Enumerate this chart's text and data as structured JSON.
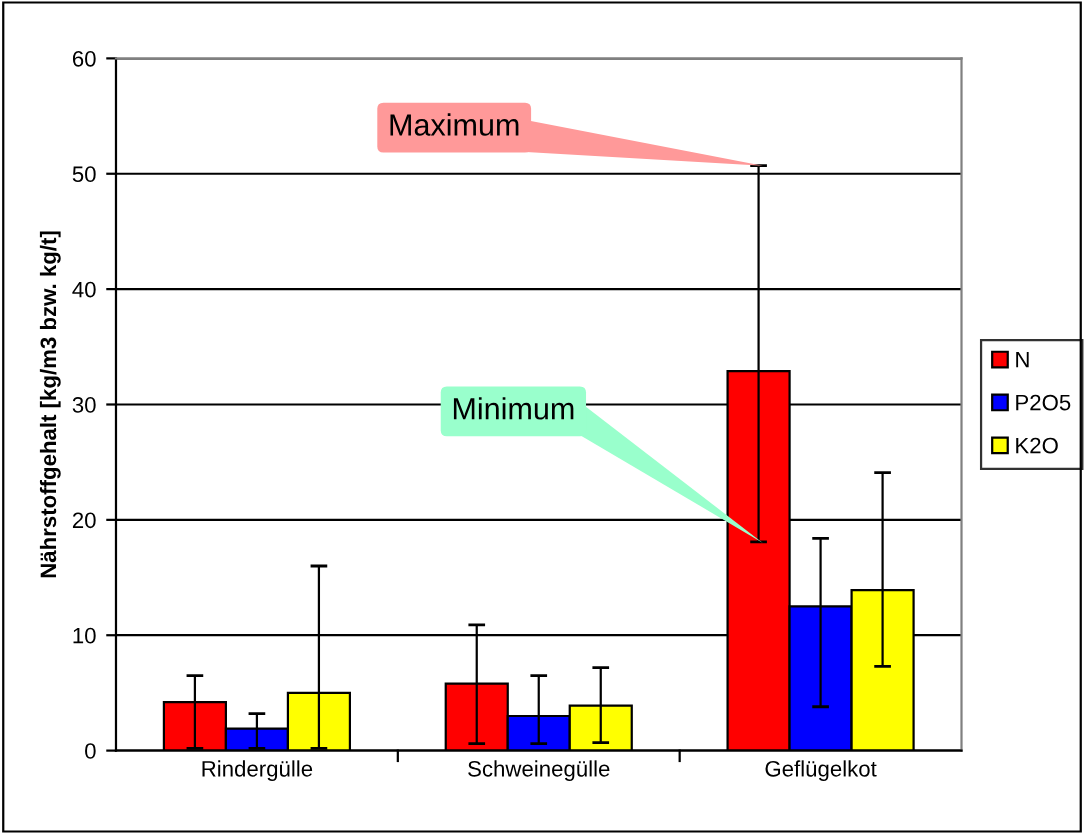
{
  "chart_data": {
    "type": "bar",
    "ylabel": "Nährstoffgehalt [kg/m3 bzw. kg/t]",
    "categories": [
      "Rindergülle",
      "Schweinegülle",
      "Geflügelkot"
    ],
    "series": [
      {
        "name": "N",
        "color": "#ff0000",
        "values": [
          4.2,
          5.8,
          32.9
        ],
        "errors": [
          [
            0.2,
            6.5
          ],
          [
            0.6,
            10.9
          ],
          [
            18.1,
            50.7
          ]
        ]
      },
      {
        "name": "P2O5",
        "color": "#0000ff",
        "values": [
          1.9,
          3.0,
          12.5
        ],
        "errors": [
          [
            0.2,
            3.2
          ],
          [
            0.6,
            6.5
          ],
          [
            3.8,
            18.4
          ]
        ]
      },
      {
        "name": "K2O",
        "color": "#ffff00",
        "values": [
          5.0,
          3.9,
          13.9
        ],
        "errors": [
          [
            0.2,
            16.0
          ],
          [
            0.7,
            7.2
          ],
          [
            7.3,
            24.1
          ]
        ]
      }
    ],
    "ylim": [
      0,
      60
    ],
    "yticks": [
      0,
      10,
      20,
      30,
      40,
      50,
      60
    ],
    "grid": "y",
    "legend": "right",
    "annotations": [
      "Maximum",
      "Minimum"
    ]
  }
}
